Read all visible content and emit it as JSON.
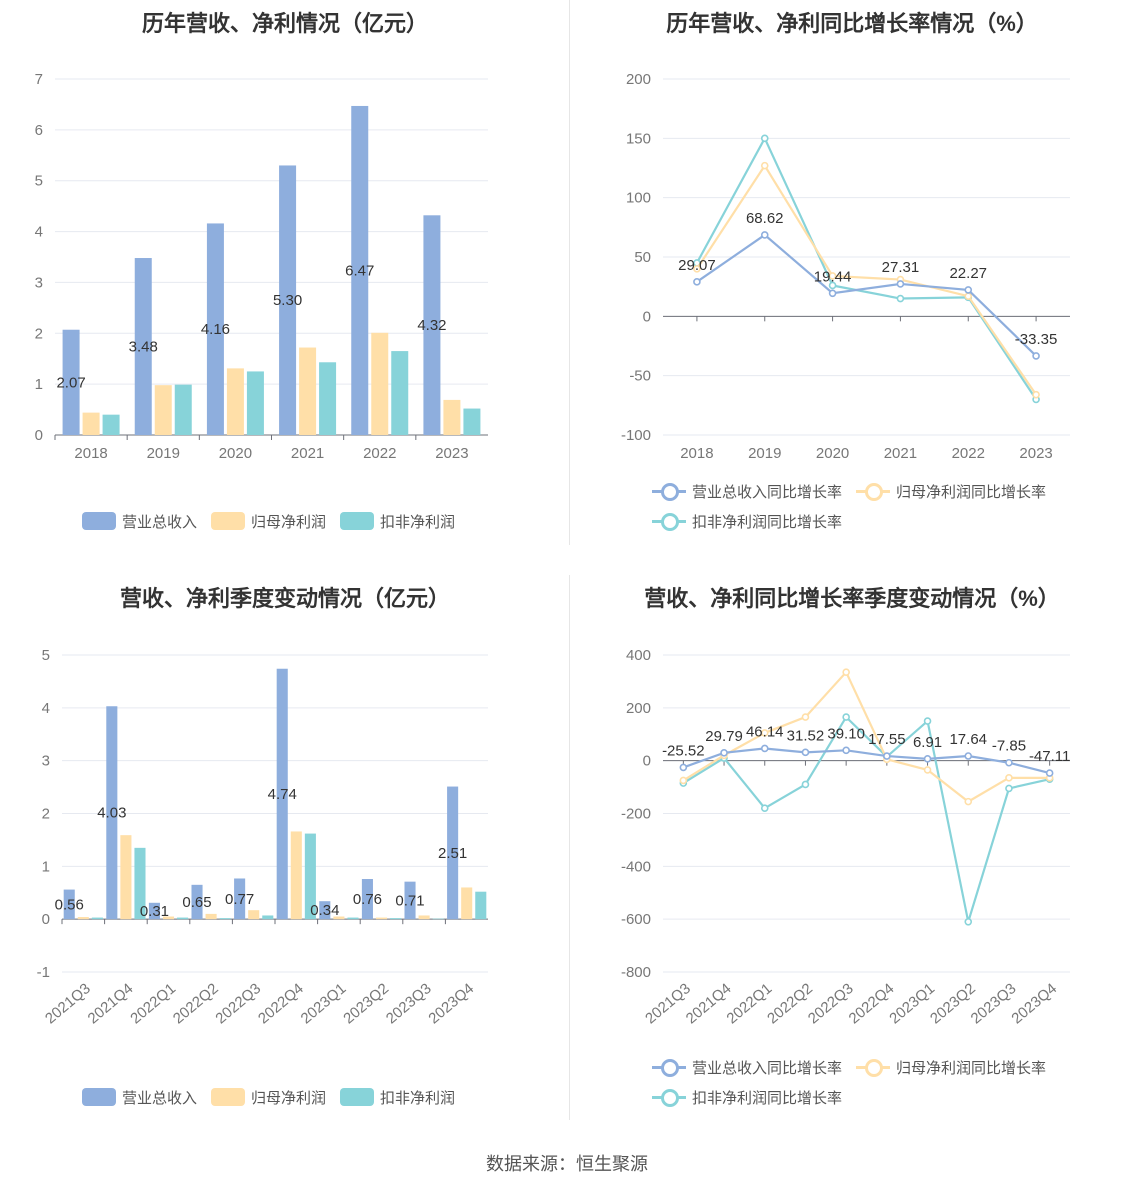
{
  "source": "数据来源：恒生聚源",
  "colors": {
    "revenue": "#8eaedd",
    "net_profit": "#ffdfa8",
    "deducted_profit": "#87d3d9"
  },
  "chart_data": [
    {
      "type": "bar",
      "title": "历年营收、净利情况（亿元）",
      "categories": [
        "2018",
        "2019",
        "2020",
        "2021",
        "2022",
        "2023"
      ],
      "ylim": [
        0,
        7
      ],
      "yticks": [
        0,
        1,
        2,
        3,
        4,
        5,
        6,
        7
      ],
      "grid": true,
      "legend": "bottom",
      "series": [
        {
          "name": "营业总收入",
          "values": [
            2.07,
            3.48,
            4.16,
            5.3,
            6.47,
            4.32
          ],
          "labels": [
            "2.07",
            "3.48",
            "4.16",
            "5.30",
            "6.47",
            "4.32"
          ]
        },
        {
          "name": "归母净利润",
          "values": [
            0.44,
            0.98,
            1.31,
            1.72,
            2.01,
            0.69
          ]
        },
        {
          "name": "扣非净利润",
          "values": [
            0.4,
            0.99,
            1.25,
            1.43,
            1.65,
            0.52
          ]
        }
      ]
    },
    {
      "type": "line",
      "title": "历年营收、净利同比增长率情况（%）",
      "categories": [
        "2018",
        "2019",
        "2020",
        "2021",
        "2022",
        "2023"
      ],
      "ylim": [
        -100,
        200
      ],
      "yticks": [
        -100,
        -50,
        0,
        50,
        100,
        150,
        200
      ],
      "grid": true,
      "legend": "bottom",
      "series": [
        {
          "name": "营业总收入同比增长率",
          "values": [
            29.07,
            68.62,
            19.44,
            27.31,
            22.27,
            -33.35
          ],
          "labels": [
            "29.07",
            "68.62",
            "19.44",
            "27.31",
            "22.27",
            "-33.35"
          ]
        },
        {
          "name": "归母净利润同比增长率",
          "values": [
            40,
            127,
            34,
            31,
            17,
            -66
          ]
        },
        {
          "name": "扣非净利润同比增长率",
          "values": [
            45,
            150,
            26,
            15,
            16,
            -70
          ]
        }
      ]
    },
    {
      "type": "bar",
      "title": "营收、净利季度变动情况（亿元）",
      "categories": [
        "2021Q3",
        "2021Q4",
        "2022Q1",
        "2022Q2",
        "2022Q3",
        "2022Q4",
        "2023Q1",
        "2023Q2",
        "2023Q3",
        "2023Q4"
      ],
      "ylim": [
        -1,
        5
      ],
      "yticks": [
        -1,
        0,
        1,
        2,
        3,
        4,
        5
      ],
      "grid": true,
      "legend": "bottom",
      "series": [
        {
          "name": "营业总收入",
          "values": [
            0.56,
            4.03,
            0.31,
            0.65,
            0.77,
            4.74,
            0.34,
            0.76,
            0.71,
            2.51
          ],
          "labels": [
            "0.56",
            "4.03",
            "0.31",
            "0.65",
            "0.77",
            "4.74",
            "0.34",
            "0.76",
            "0.71",
            "2.51"
          ]
        },
        {
          "name": "归母净利润",
          "values": [
            0.04,
            1.59,
            0.05,
            0.1,
            0.17,
            1.66,
            0.05,
            0.03,
            0.07,
            0.6
          ]
        },
        {
          "name": "扣非净利润",
          "values": [
            0.03,
            1.35,
            0.03,
            0.02,
            0.07,
            1.62,
            0.03,
            0.02,
            0.01,
            0.52
          ]
        }
      ]
    },
    {
      "type": "line",
      "title": "营收、净利同比增长率季度变动情况（%）",
      "categories": [
        "2021Q3",
        "2021Q4",
        "2022Q1",
        "2022Q2",
        "2022Q3",
        "2022Q4",
        "2023Q1",
        "2023Q2",
        "2023Q3",
        "2023Q4"
      ],
      "ylim": [
        -800,
        400
      ],
      "yticks": [
        -800,
        -600,
        -400,
        -200,
        0,
        200,
        400
      ],
      "grid": true,
      "legend": "bottom",
      "series": [
        {
          "name": "营业总收入同比增长率",
          "values": [
            -25.52,
            29.79,
            46.14,
            31.52,
            39.1,
            17.55,
            6.91,
            17.64,
            -7.85,
            -47.11
          ],
          "labels": [
            "-25.52",
            "29.79",
            "46.14",
            "31.52",
            "39.10",
            "17.55",
            "6.91",
            "17.64",
            "-7.85",
            "-47.11"
          ]
        },
        {
          "name": "归母净利润同比增长率",
          "values": [
            -75,
            20,
            105,
            165,
            335,
            5,
            -35,
            -155,
            -65,
            -65
          ]
        },
        {
          "name": "扣非净利润同比增长率",
          "values": [
            -85,
            10,
            -180,
            -90,
            165,
            15,
            150,
            -610,
            -105,
            -70
          ]
        }
      ]
    }
  ]
}
